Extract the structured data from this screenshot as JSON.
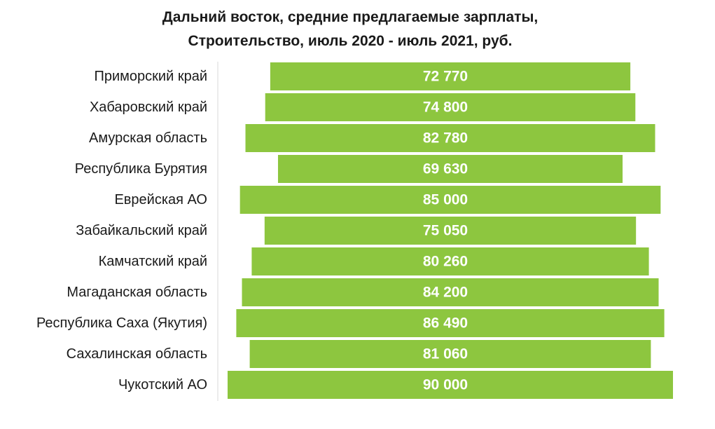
{
  "chart_data": {
    "type": "bar",
    "orientation": "horizontal",
    "layout": "centered-funnel",
    "title_lines": [
      "Дальний восток, средние предлагаемые зарплаты,",
      "Строительство, июль 2020 - июль 2021, руб."
    ],
    "categories": [
      "Приморский край",
      "Хабаровский край",
      "Амурская область",
      "Республика Бурятия",
      "Еврейская АО",
      "Забайкальский край",
      "Камчатский край",
      "Магаданская область",
      "Республика Саха (Якутия)",
      "Сахалинская область",
      "Чукотский АО"
    ],
    "values": [
      72770,
      74800,
      82780,
      69630,
      85000,
      75050,
      80260,
      84200,
      86490,
      81060,
      90000
    ],
    "value_labels": [
      "72 770",
      "74 800",
      "82 780",
      "69 630",
      "85 000",
      "75 050",
      "80 260",
      "84 200",
      "86 490",
      "81 060",
      "90 000"
    ],
    "bar_color": "#8dc63f",
    "axis_color": "#d9d9d9",
    "grid": false,
    "legend": "none"
  }
}
